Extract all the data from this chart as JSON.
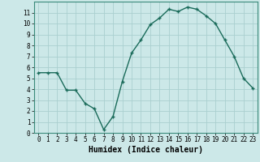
{
  "x": [
    0,
    1,
    2,
    3,
    4,
    5,
    6,
    7,
    8,
    9,
    10,
    11,
    12,
    13,
    14,
    15,
    16,
    17,
    18,
    19,
    20,
    21,
    22,
    23
  ],
  "y": [
    5.5,
    5.5,
    5.5,
    3.9,
    3.9,
    2.7,
    2.2,
    0.3,
    1.5,
    4.7,
    7.3,
    8.5,
    9.9,
    10.5,
    11.3,
    11.1,
    11.5,
    11.3,
    10.7,
    10.0,
    8.5,
    7.0,
    5.0,
    4.1
  ],
  "line_color": "#1a6b5a",
  "marker": "+",
  "marker_size": 3,
  "linewidth": 1.0,
  "background_color": "#cce8e8",
  "grid_color": "#aacfcf",
  "xlabel": "Humidex (Indice chaleur)",
  "xlabel_fontsize": 7,
  "xlim": [
    -0.5,
    23.5
  ],
  "ylim": [
    0,
    12
  ],
  "yticks": [
    0,
    1,
    2,
    3,
    4,
    5,
    6,
    7,
    8,
    9,
    10,
    11
  ],
  "xticks": [
    0,
    1,
    2,
    3,
    4,
    5,
    6,
    7,
    8,
    9,
    10,
    11,
    12,
    13,
    14,
    15,
    16,
    17,
    18,
    19,
    20,
    21,
    22,
    23
  ],
  "tick_fontsize": 5.5
}
